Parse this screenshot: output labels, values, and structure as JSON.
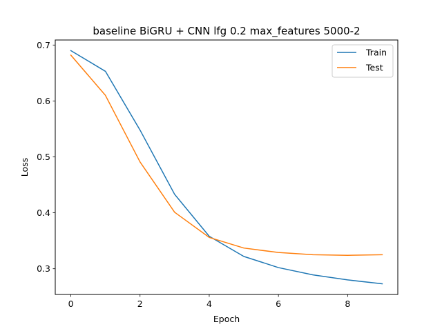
{
  "chart_data": {
    "type": "line",
    "title": "baseline BiGRU + CNN lfg 0.2 max_features 5000-2",
    "xlabel": "Epoch",
    "ylabel": "Loss",
    "xlim": [
      -0.45,
      9.45
    ],
    "ylim": [
      0.254,
      0.709
    ],
    "xticks": [
      0,
      2,
      4,
      6,
      8
    ],
    "yticks": [
      0.3,
      0.4,
      0.5,
      0.6,
      0.7
    ],
    "xtick_labels": [
      "0",
      "2",
      "4",
      "6",
      "8"
    ],
    "ytick_labels": [
      "0.3",
      "0.4",
      "0.5",
      "0.6",
      "0.7"
    ],
    "grid": false,
    "legend_position": "top-right",
    "x": [
      0,
      1,
      2,
      3,
      4,
      5,
      6,
      7,
      8,
      9
    ],
    "series": [
      {
        "name": "Train",
        "color": "#1f77b4",
        "values": [
          0.69,
          0.653,
          0.548,
          0.433,
          0.358,
          0.322,
          0.302,
          0.289,
          0.28,
          0.273
        ]
      },
      {
        "name": "Test",
        "color": "#ff7f0e",
        "values": [
          0.682,
          0.61,
          0.491,
          0.401,
          0.356,
          0.337,
          0.329,
          0.325,
          0.324,
          0.325
        ]
      }
    ]
  }
}
